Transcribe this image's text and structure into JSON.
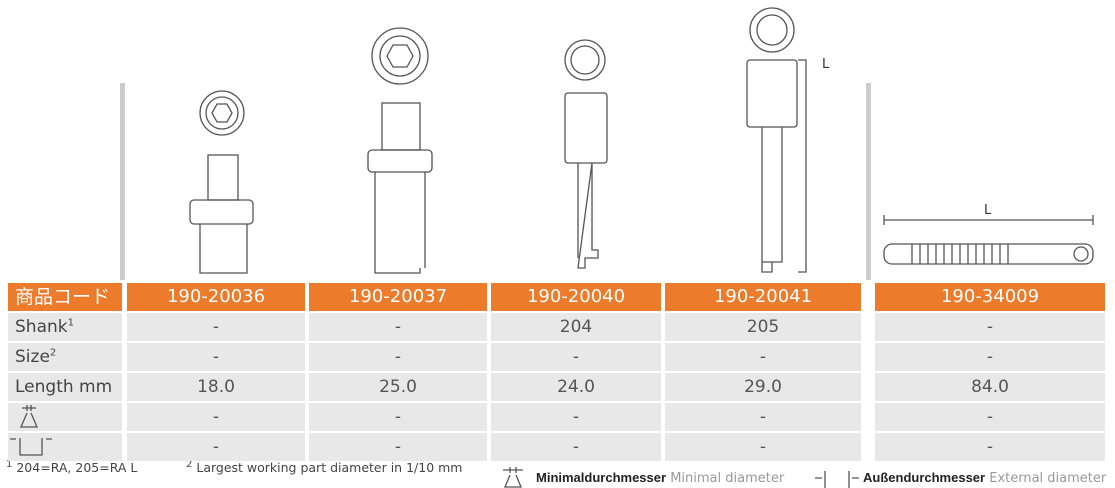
{
  "header": {
    "label": "商品コード",
    "codes": [
      "190-20036",
      "190-20037",
      "190-20040",
      "190-20041",
      "190-34009"
    ]
  },
  "rows": [
    {
      "label": "Shank",
      "sup": "1",
      "cells": [
        "-",
        "-",
        "204",
        "205",
        "-"
      ]
    },
    {
      "label": "Size",
      "sup": "2",
      "cells": [
        "-",
        "-",
        "-",
        "-",
        "-"
      ]
    },
    {
      "label": "Length mm",
      "cells": [
        "18.0",
        "25.0",
        "24.0",
        "29.0",
        "84.0"
      ]
    },
    {
      "cells": [
        "-",
        "-",
        "-",
        "-",
        "-"
      ]
    },
    {
      "cells": [
        "-",
        "-",
        "-",
        "-",
        "-"
      ]
    }
  ],
  "dimension_labels": [
    "L",
    "L"
  ],
  "footnotes": [
    {
      "mark": "1",
      "text": "204=RA, 205=RA L"
    },
    {
      "mark": "2",
      "text": "Largest working part diameter in 1/10 mm"
    }
  ],
  "legend": [
    {
      "de": "Minimaldurchmesser",
      "en": "Minimal diameter"
    },
    {
      "de": "Außendurchmesser",
      "en": "External diameter"
    }
  ]
}
